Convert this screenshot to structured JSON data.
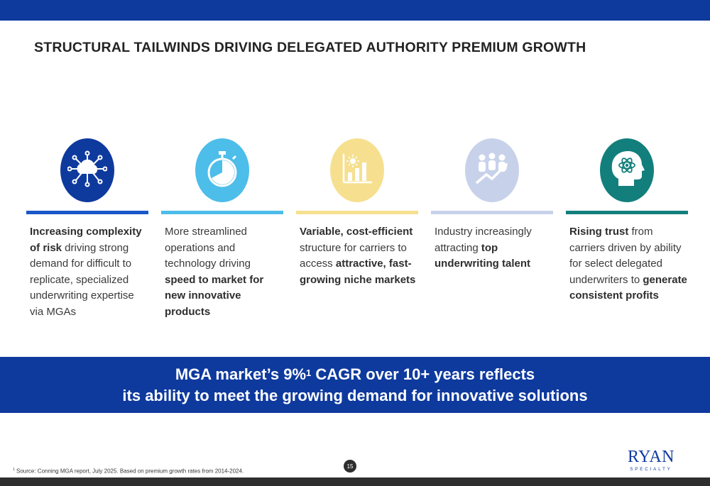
{
  "title": "STRUCTURAL TAILWINDS DRIVING DELEGATED AUTHORITY PREMIUM GROWTH",
  "pillars": [
    {
      "icon": "cloud-network-icon",
      "color": "#0e3a9e",
      "rule_color": "#1a57c9",
      "segments": [
        {
          "text": "Increasing complexity of risk",
          "bold": true
        },
        {
          "text": " driving strong demand for difficult to replicate, specialized underwriting expertise via MGAs",
          "bold": false
        }
      ]
    },
    {
      "icon": "stopwatch-icon",
      "color": "#4dbde9",
      "rule_color": "#4dbde9",
      "segments": [
        {
          "text": "More streamlined operations and technology driving ",
          "bold": false
        },
        {
          "text": "speed to market for new innovative products",
          "bold": true
        }
      ]
    },
    {
      "icon": "growth-chart-icon",
      "color": "#f6e08f",
      "rule_color": "#f6e08f",
      "segments": [
        {
          "text": "Variable, cost-efficient",
          "bold": true
        },
        {
          "text": " structure for carriers to access ",
          "bold": false
        },
        {
          "text": "attractive, fast-growing niche markets",
          "bold": true
        }
      ]
    },
    {
      "icon": "people-growth-icon",
      "color": "#c7d2ea",
      "rule_color": "#c7d2ea",
      "segments": [
        {
          "text": "Industry increasingly attracting ",
          "bold": false
        },
        {
          "text": "top underwriting talent",
          "bold": true
        }
      ]
    },
    {
      "icon": "head-atom-icon",
      "color": "#137f7c",
      "rule_color": "#137f7c",
      "segments": [
        {
          "text": "Rising trust",
          "bold": true
        },
        {
          "text": " from carriers driven by ability for select delegated underwriters to ",
          "bold": false
        },
        {
          "text": "generate consistent profits",
          "bold": true
        }
      ]
    }
  ],
  "banner": {
    "line1_pre": "MGA market’s 9%",
    "line1_sup": "1",
    "line1_post": " CAGR over 10+ years reflects",
    "line2": "its ability to meet the growing demand for innovative solutions"
  },
  "footnote": {
    "marker": "1",
    "text": " Source: Conning MGA report, July 2025. Based on premium growth rates from 2014-2024."
  },
  "page_number": "15",
  "logo": {
    "main": "RYAN",
    "sub": "SPECIALTY"
  },
  "colors": {
    "brand_blue": "#0e3a9e",
    "dark_bar": "#2e2e2e"
  }
}
